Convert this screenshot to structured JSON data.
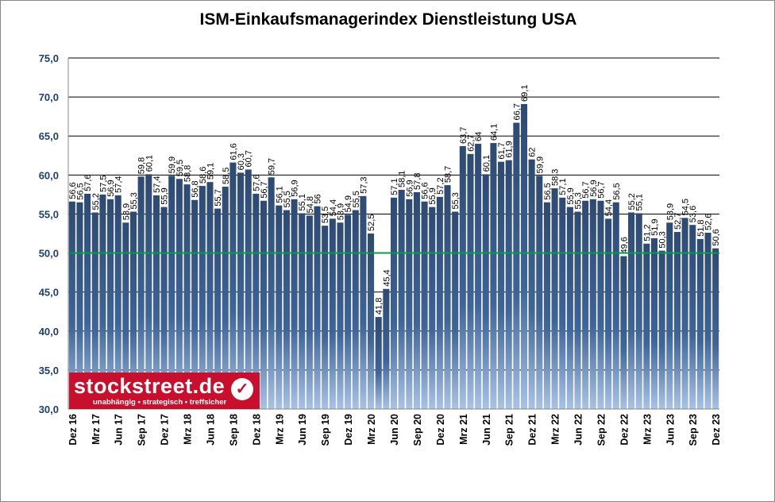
{
  "chart_data": {
    "type": "bar",
    "title": "ISM-Einkaufsmanagerindex Dienstleistung USA",
    "xlabel": "",
    "ylabel": "",
    "ylim": [
      30,
      75
    ],
    "yticks": [
      "30,0",
      "35,0",
      "40,0",
      "45,0",
      "50,0",
      "55,0",
      "60,0",
      "65,0",
      "70,0",
      "75,0"
    ],
    "grid": true,
    "reference_line": {
      "value": 50,
      "color": "#00a040"
    },
    "bar_color": "#2e4a72",
    "xtick_labels": [
      "Dez 16",
      "Mrz 17",
      "Jun 17",
      "Sep 17",
      "Dez 17",
      "Mrz 18",
      "Jun 18",
      "Sep 18",
      "Dez 18",
      "Mrz 19",
      "Jun 19",
      "Sep 19",
      "Dez 19",
      "Mrz 20",
      "Jun 20",
      "Sep 20",
      "Dez 20",
      "Mrz 21",
      "Jun 21",
      "Sep 21",
      "Dez 21",
      "Mrz 22",
      "Jun 22",
      "Sep 22",
      "Dez 22",
      "Mrz 23",
      "Jun 23",
      "Sep 23",
      "Dez 23"
    ],
    "values": [
      56.6,
      56.5,
      57.6,
      55.2,
      57.5,
      56.9,
      57.4,
      53.9,
      55.3,
      59.8,
      60.1,
      57.4,
      55.9,
      59.9,
      59.5,
      58.8,
      56.8,
      58.6,
      59.1,
      55.7,
      58.5,
      61.6,
      60.3,
      60.7,
      57.6,
      56.7,
      59.7,
      56.1,
      55.5,
      56.9,
      55.1,
      54.8,
      56,
      53.5,
      54.4,
      53.9,
      54.9,
      55.5,
      57.3,
      52.5,
      41.8,
      45.4,
      57.1,
      58.1,
      56.9,
      57.8,
      56.6,
      55.9,
      57.2,
      58.7,
      55.3,
      63.7,
      62.7,
      64,
      60.1,
      64.1,
      61.7,
      61.9,
      66.7,
      69.1,
      62,
      59.9,
      56.5,
      58.3,
      57.1,
      55.9,
      55.3,
      56.7,
      56.9,
      56.7,
      54.4,
      56.5,
      49.6,
      55.2,
      55.1,
      51.2,
      51.9,
      50.3,
      53.9,
      52.7,
      54.5,
      53.6,
      51.8,
      52.6,
      50.6
    ]
  },
  "logo": {
    "name": "stockstreet.de",
    "tagline": "unabhängig • strategisch • treffsicher"
  }
}
